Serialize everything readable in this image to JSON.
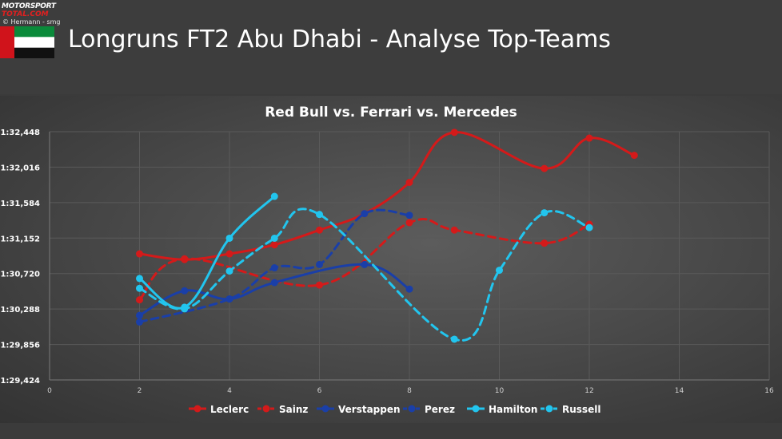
{
  "header": {
    "logo_line1": "MOTORSPORT",
    "logo_line2": "TOTAL.COM",
    "credit": "© Hermann - smg",
    "title": "Longruns FT2 Abu Dhabi - Analyse Top-Teams"
  },
  "colors": {
    "ferrari": "#d41a1a",
    "redbull": "#1a3fa8",
    "mercedes": "#22c5ee",
    "grid": "#5a5a5a",
    "text": "#ffffff"
  },
  "chart_data": {
    "type": "line",
    "title": "Red Bull vs. Ferrari vs. Mercedes",
    "xlabel": "",
    "ylabel": "",
    "xlim": [
      0,
      16
    ],
    "x_ticks": [
      "0",
      "2",
      "4",
      "6",
      "8",
      "10",
      "12",
      "14",
      "16"
    ],
    "y_ticks": [
      "01:29,424",
      "01:29,856",
      "01:30,288",
      "01:30,720",
      "01:31,152",
      "01:31,584",
      "01:32,016",
      "01:32,448"
    ],
    "ylim_seconds": [
      89.424,
      92.448
    ],
    "grid": true,
    "legend_position": "bottom",
    "series": [
      {
        "name": "Leclerc",
        "team": "ferrari",
        "dashed": false,
        "x": [
          2,
          3,
          4,
          5,
          6,
          7,
          8,
          9,
          11,
          12,
          13
        ],
        "y": [
          90.96,
          90.89,
          90.96,
          91.07,
          91.25,
          91.45,
          91.83,
          92.44,
          92.0,
          92.37,
          92.16
        ]
      },
      {
        "name": "Sainz",
        "team": "ferrari",
        "dashed": true,
        "x": [
          2,
          3,
          6,
          8,
          9,
          11,
          12
        ],
        "y": [
          90.4,
          90.9,
          90.58,
          91.34,
          91.25,
          91.09,
          91.32
        ]
      },
      {
        "name": "Verstappen",
        "team": "redbull",
        "dashed": false,
        "x": [
          2,
          3,
          4,
          5,
          7,
          8
        ],
        "y": [
          90.21,
          90.51,
          90.41,
          90.61,
          90.83,
          90.53
        ]
      },
      {
        "name": "Perez",
        "team": "redbull",
        "dashed": true,
        "x": [
          2,
          4,
          5,
          6,
          7,
          8
        ],
        "y": [
          90.13,
          90.41,
          90.79,
          90.83,
          91.45,
          91.43
        ]
      },
      {
        "name": "Hamilton",
        "team": "mercedes",
        "dashed": false,
        "x": [
          2,
          3,
          4,
          5
        ],
        "y": [
          90.66,
          90.31,
          91.15,
          91.66
        ]
      },
      {
        "name": "Russell",
        "team": "mercedes",
        "dashed": true,
        "x": [
          2,
          3,
          4,
          5,
          6,
          9,
          10,
          11,
          12
        ],
        "y": [
          90.54,
          90.29,
          90.75,
          91.15,
          91.44,
          89.92,
          90.76,
          91.46,
          91.28
        ]
      }
    ]
  }
}
